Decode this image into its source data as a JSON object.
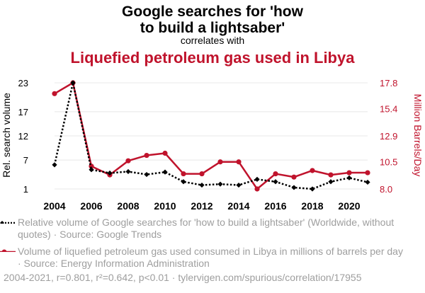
{
  "header": {
    "title": "Google searches for 'how to build a lightsaber'",
    "subtitle": "correlates with",
    "subtitle2": "Liquefied petroleum gas used in Libya"
  },
  "colors": {
    "series1": "#000000",
    "series2": "#c0132c",
    "muted": "#9e9e9e"
  },
  "legend": {
    "series1": "Relative volume of Google searches for 'how to build a lightsaber' (Worldwide, without quotes) · Source: Google Trends",
    "series2": "Volume of liquefied petroleum gas used consumed in Libya in millions of barrels per day · Source: Energy Information Administration"
  },
  "footer": "2004-2021, r=0.801, r²=0.642, p<0.01 · tylervigen.com/spurious/correlation/17955",
  "chart_data": {
    "type": "line",
    "x": [
      2004,
      2005,
      2006,
      2007,
      2008,
      2009,
      2010,
      2011,
      2012,
      2013,
      2014,
      2015,
      2016,
      2017,
      2018,
      2019,
      2020,
      2021
    ],
    "x_ticks": [
      "2004",
      "2006",
      "2008",
      "2010",
      "2012",
      "2014",
      "2016",
      "2018",
      "2020"
    ],
    "xlim": [
      2004,
      2021
    ],
    "ylabel_left": "Rel. search volume",
    "ylabel_right": "Million Barrels/Day",
    "y_left_ticks": [
      "1",
      "7",
      "12",
      "17",
      "23"
    ],
    "y_right_ticks": [
      "8.0",
      "10.5",
      "12.9",
      "15.4",
      "17.8"
    ],
    "ylim_left": [
      1,
      23
    ],
    "ylim_right": [
      8.0,
      17.8
    ],
    "grid": true,
    "series": [
      {
        "axis": "left",
        "style": "dotted",
        "marker": "diamond",
        "values": [
          6,
          23,
          5,
          4.3,
          4.6,
          4,
          4.5,
          2.5,
          1.8,
          2,
          1.8,
          3,
          2.5,
          1.3,
          1,
          2.5,
          3.3,
          2.4
        ]
      },
      {
        "axis": "right",
        "style": "solid",
        "marker": "circle",
        "values": [
          16.8,
          17.8,
          10.1,
          9.3,
          10.6,
          11.1,
          11.3,
          9.4,
          9.4,
          10.5,
          10.5,
          8.0,
          9.4,
          9.1,
          9.7,
          9.3,
          9.5,
          9.5
        ]
      }
    ]
  }
}
